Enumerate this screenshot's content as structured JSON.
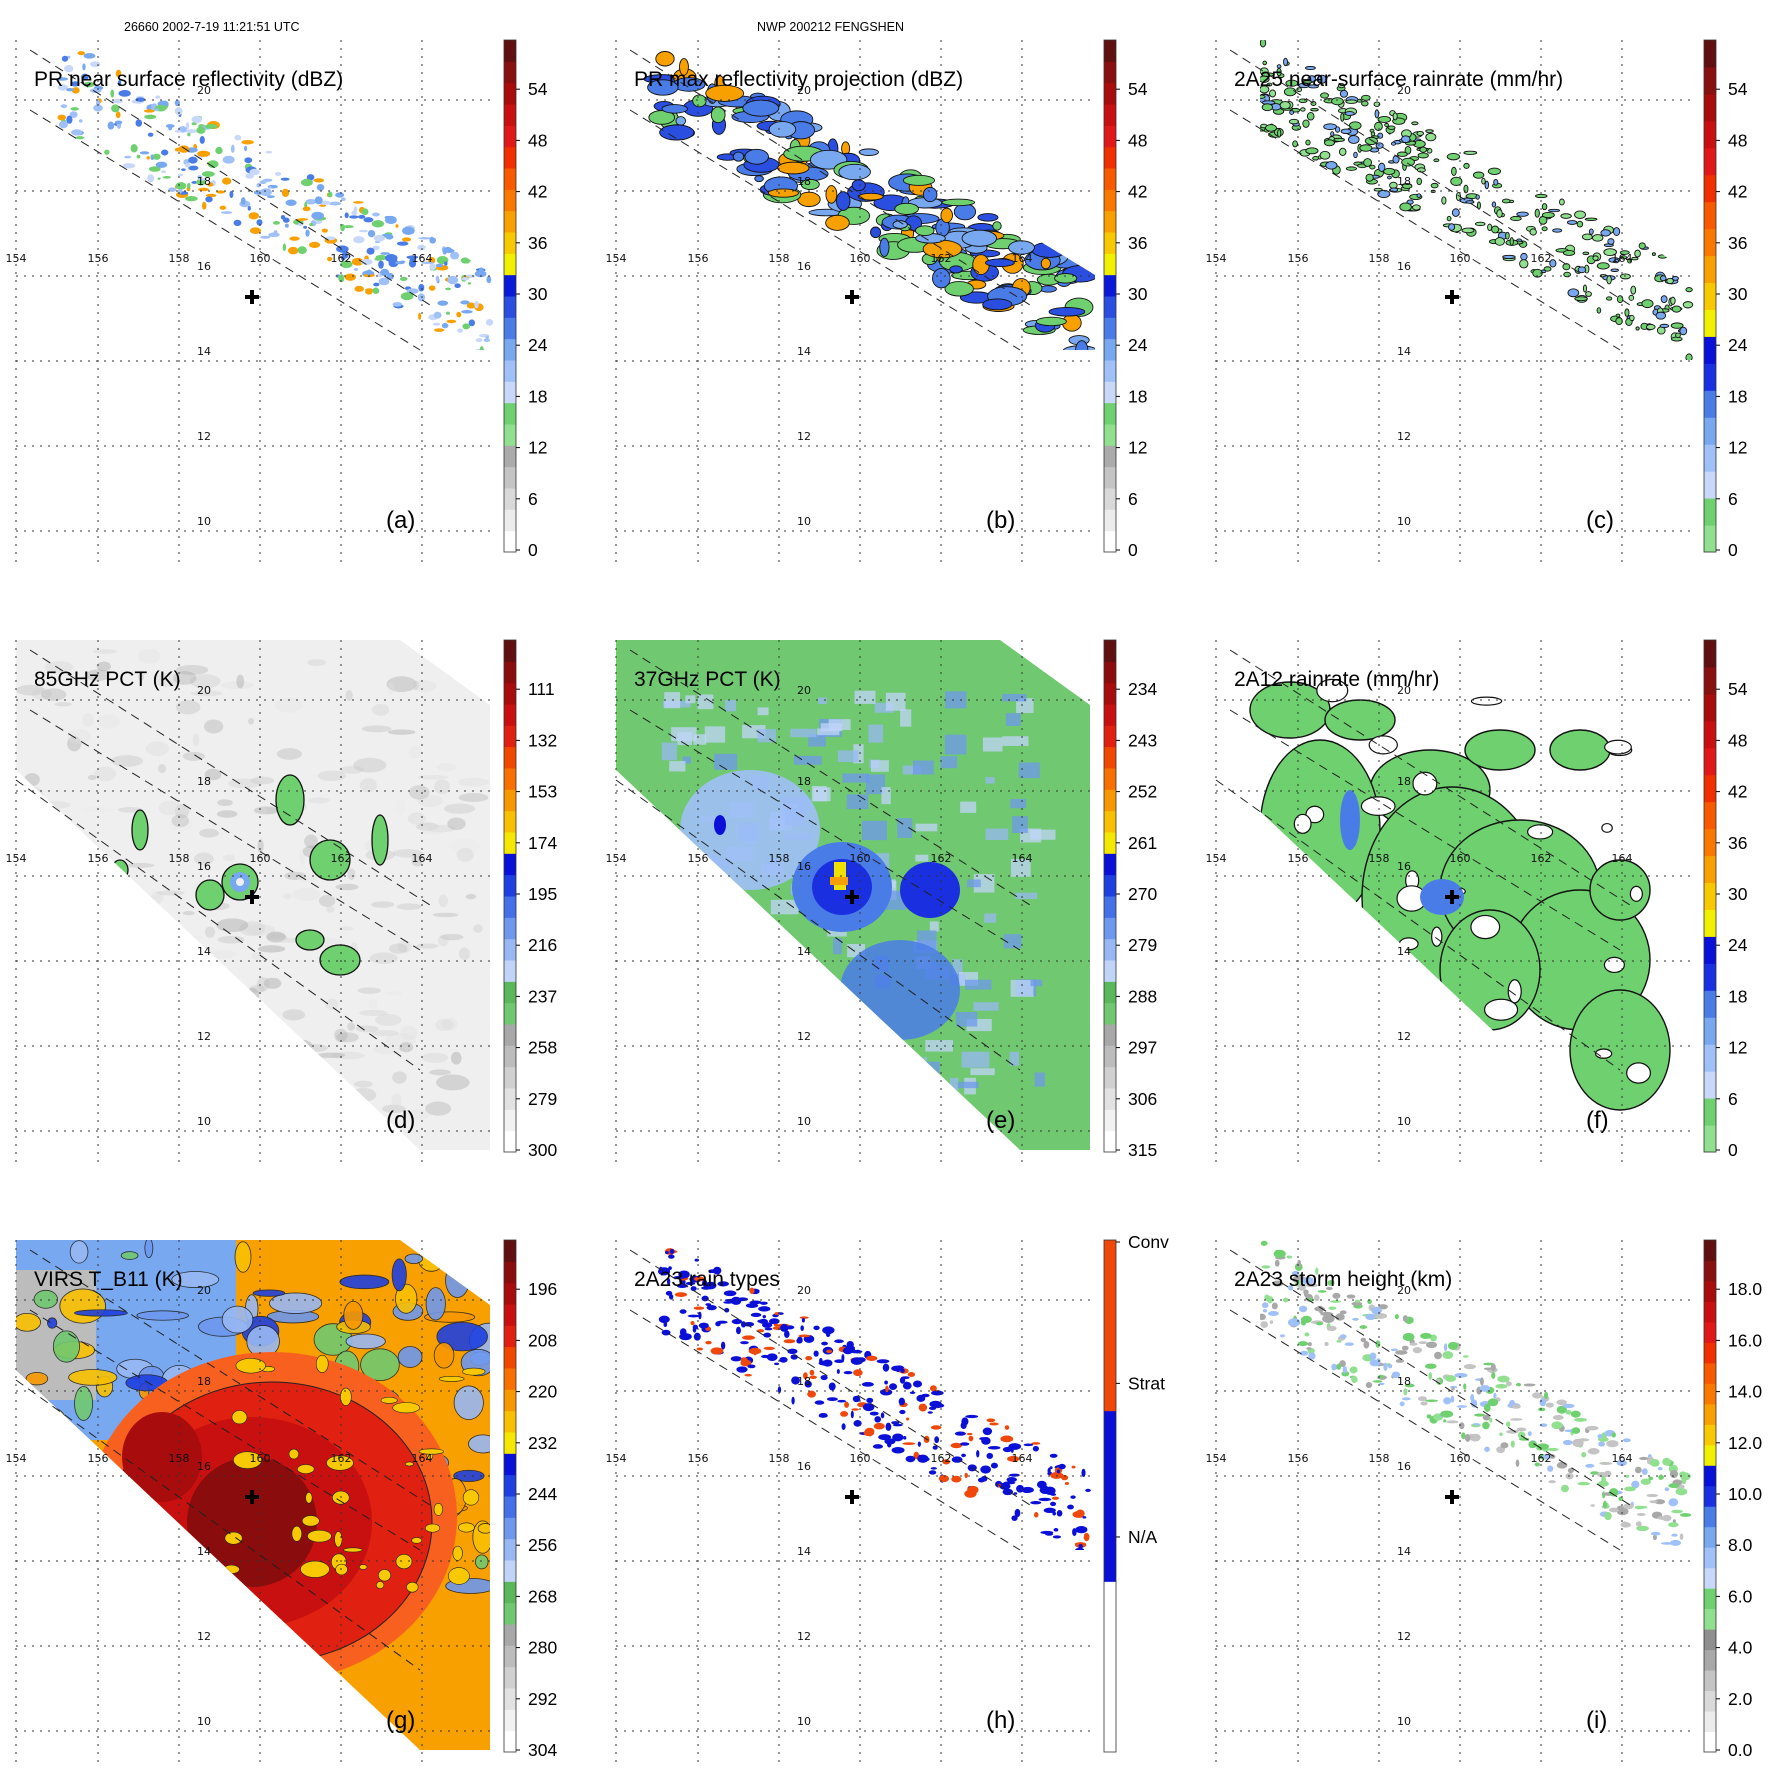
{
  "header": {
    "orbit_time": "26660 2002-7-19 11:21:51 UTC",
    "storm": "NWP 200212 FENGSHEN"
  },
  "longitudes": [
    "154",
    "156",
    "158",
    "160",
    "162",
    "164"
  ],
  "latitudes": [
    "20",
    "18",
    "16",
    "14",
    "12",
    "10"
  ],
  "colorbar_palettes": {
    "dbz": [
      "#ffffff",
      "#ececec",
      "#d9d9d9",
      "#c4c4c4",
      "#ababab",
      "#90e090",
      "#6ed06e",
      "#c8d8f8",
      "#a0c0f8",
      "#78a8f0",
      "#4a7ce8",
      "#2a4ee0",
      "#0a18d8",
      "#f0f000",
      "#f8c800",
      "#f8a000",
      "#f87800",
      "#f85a00",
      "#f03000",
      "#e01818",
      "#c81010",
      "#a80c0c",
      "#881010",
      "#601010"
    ],
    "pct": [
      "#ffffff",
      "#f2f2f2",
      "#e2e2e2",
      "#d0d0d0",
      "#bcbcbc",
      "#a8a8a8",
      "#70c870",
      "#5ab85a",
      "#c0d4f8",
      "#98b8f4",
      "#6e98ee",
      "#4470e8",
      "#1e40e0",
      "#0a10d8",
      "#f4e800",
      "#f8c000",
      "#f89800",
      "#f87000",
      "#f04800",
      "#e02010",
      "#c81010",
      "#a80c0c",
      "#8a0c0c",
      "#601010"
    ],
    "rain": [
      "#90e090",
      "#6ed06e",
      "#c8d8f8",
      "#a0c0f8",
      "#78a8f0",
      "#4a7ce8",
      "#1a30e0",
      "#0a10d8",
      "#f0f000",
      "#f8c800",
      "#f8a000",
      "#f87800",
      "#f85a00",
      "#f03000",
      "#e01818",
      "#c81010",
      "#a80c0c",
      "#881010",
      "#601010"
    ],
    "raintypes": [
      "#ffffff",
      "#0a10d8",
      "#f0480a"
    ],
    "height": [
      "#ffffff",
      "#ececec",
      "#d9d9d9",
      "#c4c4c4",
      "#a8a8a8",
      "#8e8e8e",
      "#90e090",
      "#6ed06e",
      "#c8d8f8",
      "#a0c0f8",
      "#78a8f0",
      "#4a7ce8",
      "#1a30e0",
      "#0a10d8",
      "#f0f000",
      "#f8c800",
      "#f8a000",
      "#f87800",
      "#f85a00",
      "#f03000",
      "#e01818",
      "#c81010",
      "#a80c0c",
      "#881010",
      "#601010"
    ]
  },
  "panels": [
    {
      "id": "a",
      "title": "PR near surface reflectivity (dBZ)",
      "label": "(a)",
      "colorbar_ticks": [
        "0",
        "6",
        "12",
        "18",
        "24",
        "30",
        "36",
        "42",
        "48",
        "54"
      ],
      "palette": "dbz",
      "style": "pr"
    },
    {
      "id": "b",
      "title": "PR max reflectivity projection (dBZ)",
      "label": "(b)",
      "colorbar_ticks": [
        "0",
        "6",
        "12",
        "18",
        "24",
        "30",
        "36",
        "42",
        "48",
        "54"
      ],
      "palette": "dbz",
      "style": "prmax"
    },
    {
      "id": "c",
      "title": "2A25 near-surface rainrate (mm/hr)",
      "label": "(c)",
      "colorbar_ticks": [
        "0",
        "6",
        "12",
        "18",
        "24",
        "30",
        "36",
        "42",
        "48",
        "54"
      ],
      "palette": "rain",
      "style": "prrain"
    },
    {
      "id": "d",
      "title": "85GHz PCT (K)",
      "label": "(d)",
      "colorbar_ticks": [
        "300",
        "279",
        "258",
        "237",
        "216",
        "195",
        "174",
        "153",
        "132",
        "111"
      ],
      "palette": "pct",
      "style": "pct85"
    },
    {
      "id": "e",
      "title": "37GHz PCT (K)",
      "label": "(e)",
      "colorbar_ticks": [
        "315",
        "306",
        "297",
        "288",
        "279",
        "270",
        "261",
        "252",
        "243",
        "234"
      ],
      "palette": "pct",
      "style": "pct37"
    },
    {
      "id": "f",
      "title": "2A12 rainrate (mm/hr)",
      "label": "(f)",
      "colorbar_ticks": [
        "0",
        "6",
        "12",
        "18",
        "24",
        "30",
        "36",
        "42",
        "48",
        "54"
      ],
      "palette": "rain",
      "style": "tmi"
    },
    {
      "id": "g",
      "title": "VIRS T_B11 (K)",
      "label": "(g)",
      "colorbar_ticks": [
        "304",
        "292",
        "280",
        "268",
        "256",
        "244",
        "232",
        "220",
        "208",
        "196"
      ],
      "palette": "pct",
      "style": "virs"
    },
    {
      "id": "h",
      "title": "2A23 rain types",
      "label": "(h)",
      "colorbar_ticks": [
        "N/A",
        "Strat",
        "Conv"
      ],
      "palette": "raintypes",
      "style": "types"
    },
    {
      "id": "i",
      "title": "2A23 storm height (km)",
      "label": "(i)",
      "colorbar_ticks": [
        "0.0",
        "2.0",
        "4.0",
        "6.0",
        "8.0",
        "10.0",
        "12.0",
        "14.0",
        "16.0",
        "18.0"
      ],
      "palette": "height",
      "style": "height"
    }
  ]
}
